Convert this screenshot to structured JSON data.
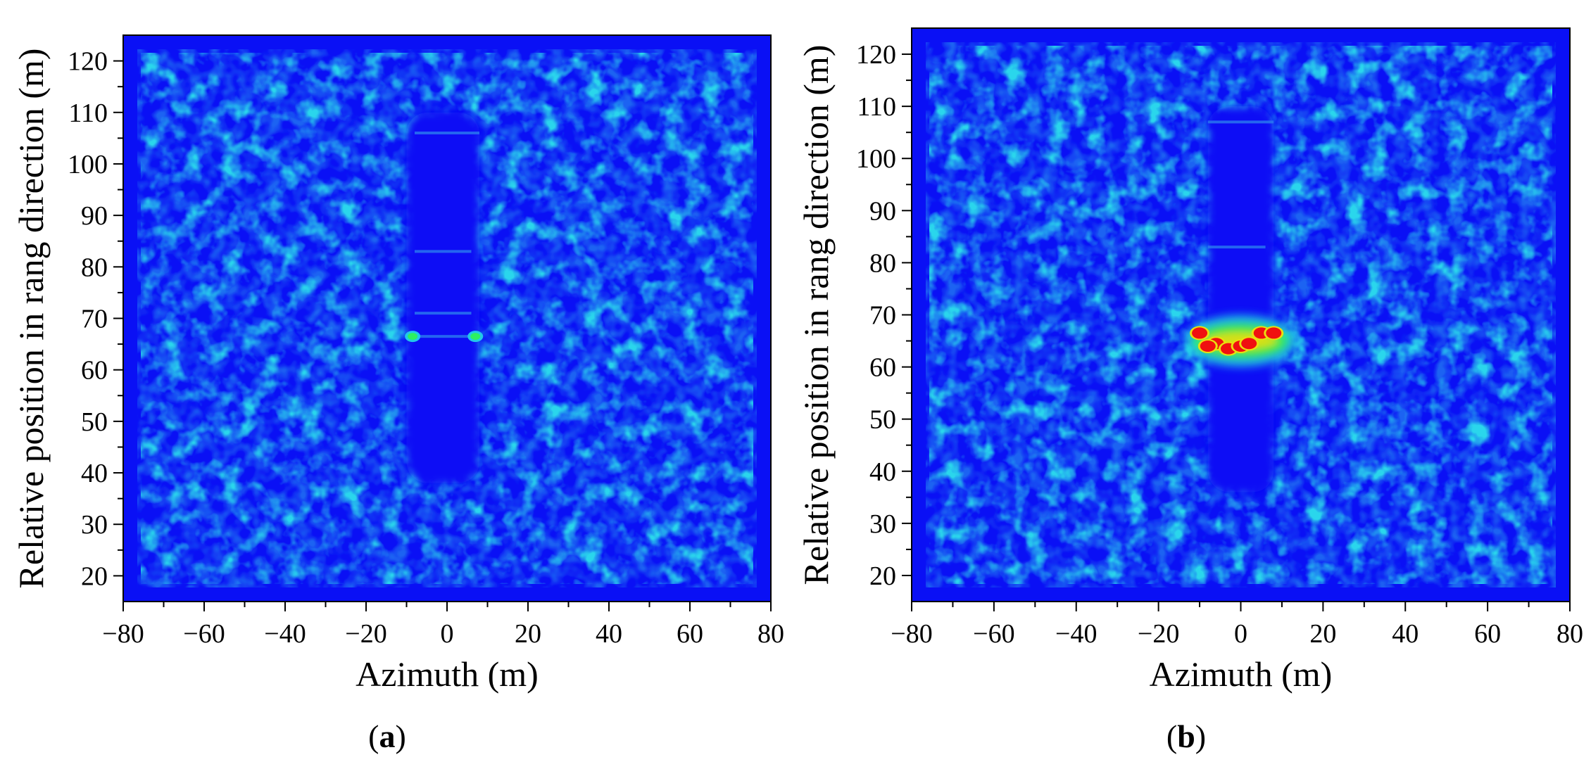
{
  "chart_data": [
    {
      "type": "heatmap",
      "panel_label": "a",
      "xlabel": "Azimuth (m)",
      "ylabel": "Relative position in rang direction (m)",
      "xlim": [
        -80,
        80
      ],
      "ylim": [
        15,
        125
      ],
      "xticks": [
        "−80",
        "−60",
        "−40",
        "−20",
        "0",
        "20",
        "40",
        "60",
        "80"
      ],
      "yticks": [
        "20",
        "30",
        "40",
        "50",
        "60",
        "70",
        "80",
        "90",
        "100",
        "110",
        "120"
      ],
      "colormap": [
        "#0a10f5",
        "#1e6cf0",
        "#22c8e8",
        "#2df060",
        "#e8e010",
        "#f01010"
      ],
      "background_color": "#0a10f5",
      "quiet_region": {
        "x": [
          -10,
          8
        ],
        "y": [
          38,
          110
        ]
      },
      "hotspots": [
        {
          "x": -8.5,
          "y": 66.5,
          "level": "green"
        },
        {
          "x": 7,
          "y": 66.5,
          "level": "green"
        }
      ],
      "streaks": [
        {
          "x": [
            -8,
            8
          ],
          "y": 106
        },
        {
          "x": [
            -8,
            6
          ],
          "y": 83
        },
        {
          "x": [
            -8,
            6
          ],
          "y": 71
        },
        {
          "x": [
            -8,
            8
          ],
          "y": 66.5
        }
      ]
    },
    {
      "type": "heatmap",
      "panel_label": "b",
      "xlabel": "Azimuth (m)",
      "ylabel": "Relative position in rang direction (m)",
      "xlim": [
        -80,
        80
      ],
      "ylim": [
        15,
        125
      ],
      "xticks": [
        "−80",
        "−60",
        "−40",
        "−20",
        "0",
        "20",
        "40",
        "60",
        "80"
      ],
      "yticks": [
        "20",
        "30",
        "40",
        "50",
        "60",
        "70",
        "80",
        "90",
        "100",
        "110",
        "120"
      ],
      "colormap": [
        "#0a10f5",
        "#1e6cf0",
        "#22c8e8",
        "#2df060",
        "#e8e010",
        "#f01010"
      ],
      "background_color": "#0a10f5",
      "quiet_region": {
        "x": [
          -8,
          8
        ],
        "y": [
          36,
          110
        ]
      },
      "hotspots": [
        {
          "x": -10,
          "y": 66.5,
          "level": "red"
        },
        {
          "x": -6,
          "y": 64.5,
          "level": "red"
        },
        {
          "x": -3,
          "y": 63.5,
          "level": "red"
        },
        {
          "x": 0,
          "y": 64,
          "level": "red"
        },
        {
          "x": 2,
          "y": 64.5,
          "level": "red"
        },
        {
          "x": 5,
          "y": 66.5,
          "level": "red"
        },
        {
          "x": 8,
          "y": 66.5,
          "level": "red"
        },
        {
          "x": -8,
          "y": 64,
          "level": "red"
        }
      ],
      "broad_glow": {
        "x": [
          -14,
          14
        ],
        "y": [
          60,
          70
        ]
      },
      "streaks": [
        {
          "x": [
            -8,
            8
          ],
          "y": 107
        },
        {
          "x": [
            -8,
            6
          ],
          "y": 83
        }
      ]
    }
  ]
}
